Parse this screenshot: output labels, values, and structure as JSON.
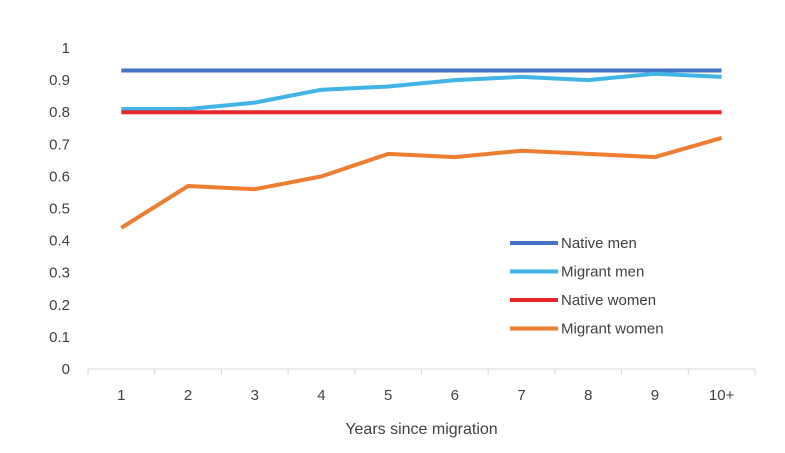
{
  "chart_data": {
    "type": "line",
    "title": "",
    "xlabel": "Years since migration",
    "ylabel": "",
    "categories": [
      "1",
      "2",
      "3",
      "4",
      "5",
      "6",
      "7",
      "8",
      "9",
      "10+"
    ],
    "ylim": [
      0,
      1
    ],
    "yticks": [
      "0",
      "0.1",
      "0.2",
      "0.3",
      "0.4",
      "0.5",
      "0.6",
      "0.7",
      "0.8",
      "0.9",
      "1"
    ],
    "grid": false,
    "legend_position": "bottom-right",
    "series": [
      {
        "name": "Native men",
        "color": "#4472c4",
        "values": [
          0.93,
          0.93,
          0.93,
          0.93,
          0.93,
          0.93,
          0.93,
          0.93,
          0.93,
          0.93
        ]
      },
      {
        "name": "Migrant men",
        "color": "#41b4e6",
        "values": [
          0.81,
          0.81,
          0.83,
          0.87,
          0.88,
          0.9,
          0.91,
          0.9,
          0.92,
          0.91
        ]
      },
      {
        "name": "Native women",
        "color": "#e8262a",
        "values": [
          0.8,
          0.8,
          0.8,
          0.8,
          0.8,
          0.8,
          0.8,
          0.8,
          0.8,
          0.8
        ]
      },
      {
        "name": "Migrant women",
        "color": "#ed7d31",
        "values": [
          0.44,
          0.57,
          0.56,
          0.6,
          0.67,
          0.66,
          0.68,
          0.67,
          0.66,
          0.72
        ]
      }
    ]
  }
}
